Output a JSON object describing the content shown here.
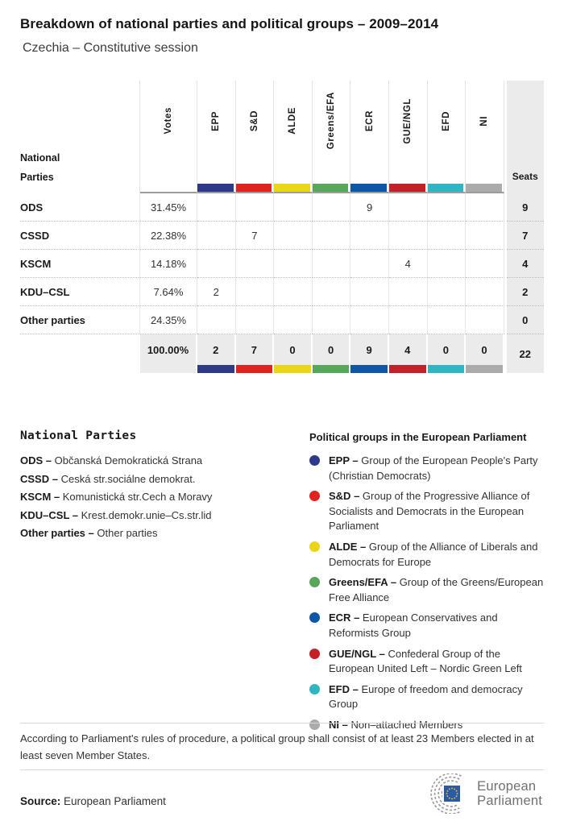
{
  "header": {
    "title": "Breakdown of national parties and political groups – 2009–2014",
    "subtitle": "Czechia – Constitutive session"
  },
  "table": {
    "row_header_line1": "National",
    "row_header_line2": "Parties",
    "votes_label": "Votes",
    "seats_label": "Seats",
    "groups": [
      {
        "key": "EPP",
        "color": "#2e3a87"
      },
      {
        "key": "S&D",
        "color": "#e0231f"
      },
      {
        "key": "ALDE",
        "color": "#e9d616"
      },
      {
        "key": "Greens/EFA",
        "color": "#57a65a"
      },
      {
        "key": "ECR",
        "color": "#0d57a5"
      },
      {
        "key": "GUE/NGL",
        "color": "#c12127"
      },
      {
        "key": "EFD",
        "color": "#2fb6c2"
      },
      {
        "key": "NI",
        "color": "#ababab"
      }
    ],
    "rows": [
      {
        "party": "ODS",
        "votes": "31.45%",
        "cells": [
          "",
          "",
          "",
          "",
          "9",
          "",
          "",
          ""
        ],
        "seats": "9"
      },
      {
        "party": "CSSD",
        "votes": "22.38%",
        "cells": [
          "",
          "7",
          "",
          "",
          "",
          "",
          "",
          ""
        ],
        "seats": "7"
      },
      {
        "party": "KSCM",
        "votes": "14.18%",
        "cells": [
          "",
          "",
          "",
          "",
          "",
          "4",
          "",
          ""
        ],
        "seats": "4"
      },
      {
        "party": "KDU–CSL",
        "votes": "7.64%",
        "cells": [
          "2",
          "",
          "",
          "",
          "",
          "",
          "",
          ""
        ],
        "seats": "2"
      },
      {
        "party": "Other parties",
        "votes": "24.35%",
        "cells": [
          "",
          "",
          "",
          "",
          "",
          "",
          "",
          ""
        ],
        "seats": "0"
      }
    ],
    "total": {
      "votes": "100.00%",
      "cells": [
        "2",
        "7",
        "0",
        "0",
        "9",
        "4",
        "0",
        "0"
      ],
      "seats": "22"
    }
  },
  "legend_parties": {
    "heading": "National Parties",
    "items": [
      {
        "label": "ODS",
        "desc": "Občanská Demokratická Strana"
      },
      {
        "label": "CSSD",
        "desc": "Ceská str.sociálne demokrat."
      },
      {
        "label": "KSCM",
        "desc": "Komunistická str.Cech a Moravy"
      },
      {
        "label": "KDU–CSL",
        "desc": "Krest.demokr.unie–Cs.str.lid"
      },
      {
        "label": "Other parties",
        "desc": "Other parties"
      }
    ]
  },
  "legend_groups": {
    "heading": "Political groups in the European Parliament",
    "items": [
      {
        "key": "EPP",
        "color": "#2e3a87",
        "desc": "Group of the European People's Party (Christian Democrats)"
      },
      {
        "key": "S&D",
        "color": "#e0231f",
        "desc": "Group of the Progressive Alliance of Socialists and Democrats in the European Parliament"
      },
      {
        "key": "ALDE",
        "color": "#e9d616",
        "desc": "Group of the Alliance of Liberals and Democrats for Europe"
      },
      {
        "key": "Greens/EFA",
        "color": "#57a65a",
        "desc": "Group of the Greens/European Free Alliance"
      },
      {
        "key": "ECR",
        "color": "#0d57a5",
        "desc": "European Conservatives and Reformists Group"
      },
      {
        "key": "GUE/NGL",
        "color": "#c12127",
        "desc": "Confederal Group of the European United Left – Nordic Green Left"
      },
      {
        "key": "EFD",
        "color": "#2fb6c2",
        "desc": "Europe of freedom and democracy Group"
      },
      {
        "key": "NI",
        "color": "#ababab",
        "desc": "Non–attached Members"
      }
    ]
  },
  "footer": {
    "note": "According to Parliament's rules of procedure, a political group shall consist of at least 23 Members elected in at least seven Member States.",
    "source_label": "Source:",
    "source_value": "European Parliament",
    "logo_line1": "European",
    "logo_line2": "Parliament"
  }
}
